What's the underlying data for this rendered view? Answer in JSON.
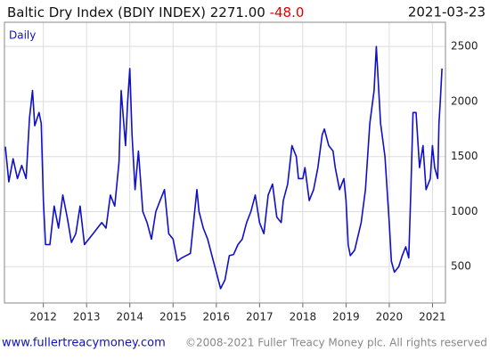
{
  "chart_data": {
    "type": "line",
    "title": "Baltic Dry Index (BDIY INDEX) 2271.00",
    "change": "-48.0",
    "date": "2021-03-23",
    "label": "Daily",
    "footer_link": "www.fullertreacymoney.com",
    "footer_copyright": "©2008-2021 Fuller Treacy Money plc. All rights reserved",
    "color": "#1010c8",
    "change_color": "#e00000",
    "grid": true,
    "xlim": [
      2011.1,
      2021.3
    ],
    "xticks": [
      2012,
      2013,
      2014,
      2015,
      2016,
      2017,
      2018,
      2019,
      2020,
      2021
    ],
    "ylim": [
      170,
      2720
    ],
    "yticks": [
      500,
      1000,
      1500,
      2000,
      2500
    ],
    "x": [
      2011.12,
      2011.2,
      2011.3,
      2011.4,
      2011.5,
      2011.6,
      2011.68,
      2011.75,
      2011.8,
      2011.9,
      2011.95,
      2012.0,
      2012.05,
      2012.15,
      2012.25,
      2012.35,
      2012.45,
      2012.55,
      2012.65,
      2012.75,
      2012.85,
      2012.95,
      2013.05,
      2013.15,
      2013.25,
      2013.35,
      2013.45,
      2013.55,
      2013.65,
      2013.75,
      2013.8,
      2013.9,
      2013.95,
      2014.0,
      2014.05,
      2014.12,
      2014.2,
      2014.3,
      2014.4,
      2014.5,
      2014.6,
      2014.7,
      2014.8,
      2014.9,
      2015.0,
      2015.1,
      2015.2,
      2015.3,
      2015.4,
      2015.5,
      2015.55,
      2015.6,
      2015.7,
      2015.8,
      2015.9,
      2016.0,
      2016.1,
      2016.2,
      2016.3,
      2016.4,
      2016.5,
      2016.6,
      2016.7,
      2016.8,
      2016.9,
      2017.0,
      2017.1,
      2017.2,
      2017.3,
      2017.4,
      2017.5,
      2017.55,
      2017.65,
      2017.75,
      2017.85,
      2017.9,
      2018.0,
      2018.05,
      2018.15,
      2018.25,
      2018.35,
      2018.45,
      2018.5,
      2018.6,
      2018.7,
      2018.75,
      2018.85,
      2018.95,
      2019.0,
      2019.05,
      2019.1,
      2019.2,
      2019.35,
      2019.45,
      2019.55,
      2019.65,
      2019.7,
      2019.8,
      2019.9,
      2020.0,
      2020.05,
      2020.12,
      2020.22,
      2020.3,
      2020.38,
      2020.45,
      2020.5,
      2020.55,
      2020.62,
      2020.7,
      2020.78,
      2020.85,
      2020.95,
      2021.0,
      2021.05,
      2021.12,
      2021.15,
      2021.18,
      2021.22
    ],
    "values": [
      1590,
      1270,
      1480,
      1300,
      1420,
      1300,
      1850,
      2100,
      1780,
      1900,
      1800,
      1100,
      700,
      700,
      1050,
      850,
      1150,
      950,
      720,
      800,
      1050,
      700,
      750,
      800,
      850,
      900,
      850,
      1150,
      1050,
      1450,
      2100,
      1600,
      2000,
      2300,
      1700,
      1200,
      1550,
      1000,
      900,
      750,
      1000,
      1100,
      1200,
      800,
      750,
      550,
      580,
      600,
      620,
      1000,
      1200,
      1000,
      850,
      750,
      600,
      450,
      300,
      380,
      600,
      610,
      700,
      750,
      900,
      1000,
      1150,
      900,
      800,
      1150,
      1250,
      950,
      900,
      1100,
      1250,
      1600,
      1500,
      1300,
      1300,
      1400,
      1100,
      1200,
      1400,
      1700,
      1750,
      1600,
      1550,
      1400,
      1200,
      1300,
      1100,
      700,
      600,
      650,
      900,
      1200,
      1800,
      2100,
      2500,
      1800,
      1500,
      900,
      550,
      450,
      500,
      600,
      680,
      580,
      1200,
      1900,
      1900,
      1400,
      1600,
      1200,
      1300,
      1600,
      1400,
      1300,
      1800,
      2000,
      2300
    ]
  }
}
